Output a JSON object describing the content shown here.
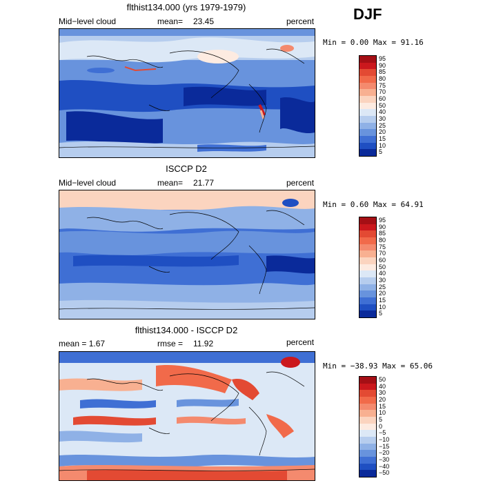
{
  "season": "DJF",
  "colorbar_ticks_abs": [
    "95",
    "90",
    "85",
    "80",
    "75",
    "70",
    "60",
    "50",
    "40",
    "30",
    "25",
    "20",
    "15",
    "10",
    "5"
  ],
  "colorbar_ticks_diff": [
    "50",
    "40",
    "30",
    "20",
    "15",
    "10",
    "5",
    "0",
    "−5",
    "−10",
    "−15",
    "−20",
    "−30",
    "−40",
    "−50"
  ],
  "colors_abs": [
    "#a50f15",
    "#cb181d",
    "#e34a33",
    "#f16a4a",
    "#f48a6e",
    "#f8b091",
    "#fbd4bf",
    "#fdebe1",
    "#dce8f6",
    "#b6cdee",
    "#8fb1e6",
    "#6893dd",
    "#3f6fd4",
    "#1f4fc2",
    "#0a2a9a"
  ],
  "colors_diff": [
    "#a50f15",
    "#cb181d",
    "#e34a33",
    "#f16a4a",
    "#f48a6e",
    "#f8b091",
    "#fbd4bf",
    "#fdebe1",
    "#dce8f6",
    "#b6cdee",
    "#8fb1e6",
    "#6893dd",
    "#3f6fd4",
    "#1f4fc2",
    "#0a2a9a"
  ],
  "panels": [
    {
      "title": "flthist134.000 (yrs 1979-1979)",
      "left_label": "Mid−level cloud",
      "stat_label": "mean=",
      "stat_value": "23.45",
      "units": "percent",
      "minmax": "Min =   0.00 Max =  91.16"
    },
    {
      "title": "ISCCP D2",
      "left_label": "Mid−level cloud",
      "stat_label": "mean=",
      "stat_value": "21.77",
      "units": "percent",
      "minmax": "Min =   0.60 Max =  64.91"
    },
    {
      "title": "flthist134.000 - ISCCP D2",
      "left_label": "mean =    1.67",
      "stat_label": "rmse =",
      "stat_value": "11.92",
      "units": "percent",
      "minmax": "Min = −38.93 Max =  65.06"
    }
  ]
}
